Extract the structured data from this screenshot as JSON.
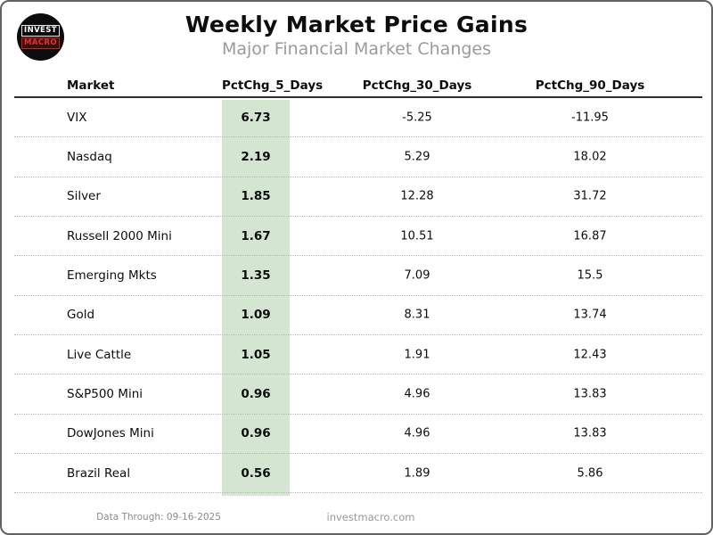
{
  "logo": {
    "line1": "INVEST",
    "line2": "MACRO"
  },
  "header": {
    "title": "Weekly Market Price Gains",
    "subtitle": "Major Financial Market Changes"
  },
  "chart_data": {
    "type": "table",
    "title": "Weekly Market Price Gains",
    "subtitle": "Major Financial Market Changes",
    "columns": [
      "Market",
      "PctChg_5_Days",
      "PctChg_30_Days",
      "PctChg_90_Days"
    ],
    "rows": [
      [
        "VIX",
        6.73,
        -5.25,
        -11.95
      ],
      [
        "Nasdaq",
        2.19,
        5.29,
        18.02
      ],
      [
        "Silver",
        1.85,
        12.28,
        31.72
      ],
      [
        "Russell 2000 Mini",
        1.67,
        10.51,
        16.87
      ],
      [
        "Emerging Mkts",
        1.35,
        7.09,
        15.5
      ],
      [
        "Gold",
        1.09,
        8.31,
        13.74
      ],
      [
        "Live Cattle",
        1.05,
        1.91,
        12.43
      ],
      [
        "S&P500 Mini",
        0.96,
        4.96,
        13.83
      ],
      [
        "DowJones Mini",
        0.96,
        4.96,
        13.83
      ],
      [
        "Brazil Real",
        0.56,
        1.89,
        5.86
      ]
    ],
    "highlight_column": "PctChg_5_Days",
    "highlight_color": "#d4e6d2",
    "layout": {
      "sorted_by": "PctChg_5_Days descending",
      "grid": "dotted row separators"
    }
  },
  "footer": {
    "data_through": "Data Through: 09-16-2025",
    "site": "investmacro.com"
  }
}
